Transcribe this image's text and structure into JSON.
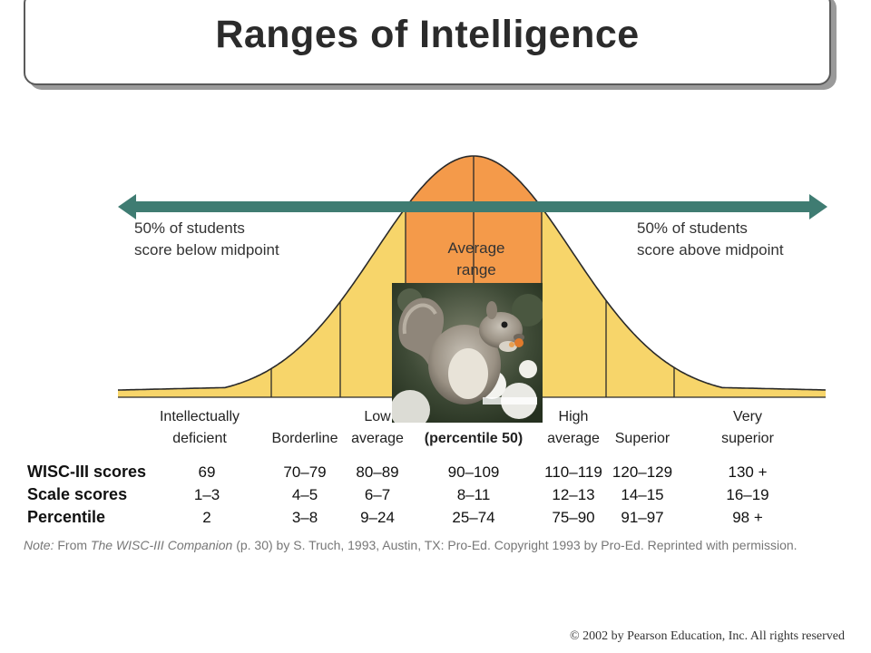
{
  "title": "Ranges of Intelligence",
  "arrow_left_text": [
    "50% of students",
    "score below midpoint"
  ],
  "arrow_right_text": [
    "50% of students",
    "score above midpoint"
  ],
  "average_range_label": [
    "Average",
    "range"
  ],
  "categories": [
    {
      "lines": [
        "Intellectually",
        "deficient"
      ]
    },
    {
      "lines": [
        "",
        "Borderline"
      ]
    },
    {
      "lines": [
        "Low",
        "average"
      ]
    },
    {
      "lines": [
        "",
        "(percentile 50)"
      ]
    },
    {
      "lines": [
        "High",
        "average"
      ]
    },
    {
      "lines": [
        "",
        "Superior"
      ]
    },
    {
      "lines": [
        "Very",
        "superior"
      ]
    }
  ],
  "table": {
    "rows": [
      {
        "label": "WISC-III scores",
        "values": [
          "69",
          "70–79",
          "80–89",
          "90–109",
          "110–119",
          "120–129",
          "130 +"
        ]
      },
      {
        "label": "Scale scores",
        "values": [
          "1–3",
          "4–5",
          "6–7",
          "8–11",
          "12–13",
          "14–15",
          "16–19"
        ]
      },
      {
        "label": "Percentile",
        "values": [
          "2",
          "3–8",
          "9–24",
          "25–74",
          "75–90",
          "91–97",
          "98 +"
        ]
      }
    ]
  },
  "note": {
    "prefix": "Note:",
    "text1": " From ",
    "book": "The WISC-III Companion",
    "text2": " (p. 30) by S. Truch, 1993, Austin, TX: Pro-Ed. Copyright 1993 by Pro-Ed. Reprinted with permission."
  },
  "copyright": "© 2002 by Pearson Education, Inc.  All rights reserved",
  "colors": {
    "curve_fill": "#f7d56a",
    "average_fill": "#f49a4a",
    "arrow": "#3f7c72",
    "line": "#2a2a2a"
  },
  "image": {
    "subject": "gray squirrel eating in snow",
    "icon": "squirrel-photo"
  }
}
